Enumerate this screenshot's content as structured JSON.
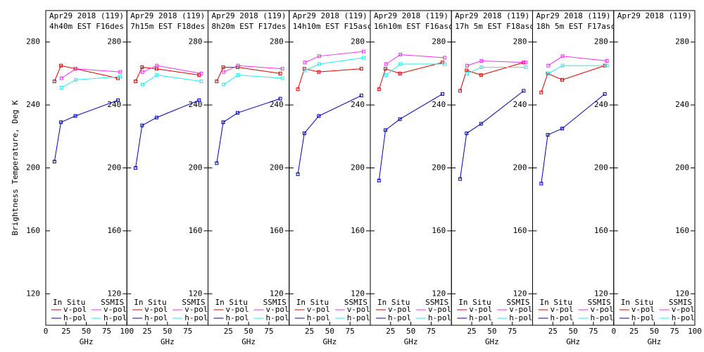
{
  "chart_data": [
    {
      "type": "line",
      "title": "Apr29 2018 (119)",
      "subtitle": "4h40m EST F16des",
      "ylabel": "Brightness Temperature, Deg K",
      "xlabel": "GHz",
      "xlim": [
        0,
        100
      ],
      "ylim": [
        100,
        300
      ],
      "xticks": [
        0,
        25,
        50,
        75,
        100
      ],
      "yticks": [
        120,
        160,
        200,
        240,
        280
      ],
      "yticks_left": true,
      "legend_groups": [
        "In Situ",
        "SSMIS"
      ],
      "series": [
        {
          "name": "v-pol",
          "group": 0,
          "color": "#dd0000",
          "x": [
            10.7,
            18.7,
            36.5,
            89
          ],
          "values": [
            255,
            265,
            263,
            257
          ]
        },
        {
          "name": "h-pol",
          "group": 0,
          "color": "#0000bb",
          "x": [
            10.7,
            18.7,
            36.5,
            89
          ],
          "values": [
            204,
            229,
            233,
            243
          ]
        },
        {
          "name": "v-pol",
          "group": 1,
          "color": "#ee33ee",
          "x": [
            19.35,
            37,
            91.66
          ],
          "values": [
            257,
            263,
            261
          ]
        },
        {
          "name": "h-pol",
          "group": 1,
          "color": "#22eeee",
          "x": [
            19.35,
            37,
            91.66
          ],
          "values": [
            251,
            256,
            258
          ]
        }
      ]
    },
    {
      "type": "line",
      "title": "Apr29 2018 (119)",
      "subtitle": "7h15m EST F18des",
      "xlabel": "GHz",
      "xlim": [
        0,
        100
      ],
      "ylim": [
        100,
        300
      ],
      "xticks": [
        25,
        50,
        75
      ],
      "yticks": [
        120,
        160,
        200,
        240,
        280
      ],
      "legend_groups": [
        "In Situ",
        "SSMIS"
      ],
      "series": [
        {
          "name": "v-pol",
          "group": 0,
          "color": "#dd0000",
          "x": [
            10.7,
            18.7,
            36.5,
            89
          ],
          "values": [
            255,
            264,
            263,
            259
          ]
        },
        {
          "name": "h-pol",
          "group": 0,
          "color": "#0000bb",
          "x": [
            10.7,
            18.7,
            36.5,
            89
          ],
          "values": [
            200,
            227,
            232,
            243
          ]
        },
        {
          "name": "v-pol",
          "group": 1,
          "color": "#ee33ee",
          "x": [
            19.35,
            37,
            91.66
          ],
          "values": [
            261,
            265,
            260
          ]
        },
        {
          "name": "h-pol",
          "group": 1,
          "color": "#22eeee",
          "x": [
            19.35,
            37,
            91.66
          ],
          "values": [
            253,
            259,
            255
          ]
        }
      ]
    },
    {
      "type": "line",
      "title": "Apr29 2018 (119)",
      "subtitle": "8h20m EST F17des",
      "xlabel": "GHz",
      "xlim": [
        0,
        100
      ],
      "ylim": [
        100,
        300
      ],
      "xticks": [
        25,
        50,
        75
      ],
      "yticks": [
        120,
        160,
        200,
        240,
        280
      ],
      "legend_groups": [
        "In Situ",
        "SSMIS"
      ],
      "series": [
        {
          "name": "v-pol",
          "group": 0,
          "color": "#dd0000",
          "x": [
            10.7,
            18.7,
            36.5,
            89
          ],
          "values": [
            255,
            264,
            264,
            260
          ]
        },
        {
          "name": "h-pol",
          "group": 0,
          "color": "#0000bb",
          "x": [
            10.7,
            18.7,
            36.5,
            89
          ],
          "values": [
            203,
            229,
            235,
            244
          ]
        },
        {
          "name": "v-pol",
          "group": 1,
          "color": "#ee33ee",
          "x": [
            19.35,
            37,
            91.66
          ],
          "values": [
            261,
            265,
            263
          ]
        },
        {
          "name": "h-pol",
          "group": 1,
          "color": "#22eeee",
          "x": [
            19.35,
            37,
            91.66
          ],
          "values": [
            253,
            259,
            257
          ]
        }
      ]
    },
    {
      "type": "line",
      "title": "Apr29 2018 (119)",
      "subtitle": "14h10m EST F15asc",
      "xlabel": "GHz",
      "xlim": [
        0,
        100
      ],
      "ylim": [
        100,
        300
      ],
      "xticks": [
        25,
        50,
        75
      ],
      "yticks": [
        120,
        160,
        200,
        240,
        280
      ],
      "legend_groups": [
        "In Situ",
        "SSMIS"
      ],
      "series": [
        {
          "name": "v-pol",
          "group": 0,
          "color": "#dd0000",
          "x": [
            10.7,
            18.7,
            36.5,
            89
          ],
          "values": [
            250,
            263,
            261,
            263
          ]
        },
        {
          "name": "h-pol",
          "group": 0,
          "color": "#0000bb",
          "x": [
            10.7,
            18.7,
            36.5,
            89
          ],
          "values": [
            196,
            222,
            233,
            246
          ]
        },
        {
          "name": "v-pol",
          "group": 1,
          "color": "#ee33ee",
          "x": [
            19.35,
            37,
            91.66
          ],
          "values": [
            267,
            271,
            274
          ]
        },
        {
          "name": "h-pol",
          "group": 1,
          "color": "#22eeee",
          "x": [
            19.35,
            37,
            91.66
          ],
          "values": [
            262,
            266,
            270
          ]
        }
      ]
    },
    {
      "type": "line",
      "title": "Apr29 2018 (119)",
      "subtitle": "16h10m EST F16asc",
      "xlabel": "GHz",
      "xlim": [
        0,
        100
      ],
      "ylim": [
        100,
        300
      ],
      "xticks": [
        25,
        50,
        75
      ],
      "yticks": [
        120,
        160,
        200,
        240,
        280
      ],
      "legend_groups": [
        "In Situ",
        "SSMIS"
      ],
      "series": [
        {
          "name": "v-pol",
          "group": 0,
          "color": "#dd0000",
          "x": [
            10.7,
            18.7,
            36.5,
            89
          ],
          "values": [
            250,
            263,
            260,
            267
          ]
        },
        {
          "name": "h-pol",
          "group": 0,
          "color": "#0000bb",
          "x": [
            10.7,
            18.7,
            36.5,
            89
          ],
          "values": [
            192,
            224,
            231,
            247
          ]
        },
        {
          "name": "v-pol",
          "group": 1,
          "color": "#ee33ee",
          "x": [
            19.35,
            37,
            91.66
          ],
          "values": [
            266,
            272,
            270
          ]
        },
        {
          "name": "h-pol",
          "group": 1,
          "color": "#22eeee",
          "x": [
            19.35,
            37,
            91.66
          ],
          "values": [
            259,
            266,
            266
          ]
        }
      ]
    },
    {
      "type": "line",
      "title": "Apr29 2018 (119)",
      "subtitle": "17h 5m EST F18asc",
      "xlabel": "GHz",
      "xlim": [
        0,
        100
      ],
      "ylim": [
        100,
        300
      ],
      "xticks": [
        25,
        50,
        75
      ],
      "yticks": [
        120,
        160,
        200,
        240,
        280
      ],
      "legend_groups": [
        "In Situ",
        "SSMIS"
      ],
      "series": [
        {
          "name": "v-pol",
          "group": 0,
          "color": "#dd0000",
          "x": [
            10.7,
            18.7,
            36.5,
            89
          ],
          "values": [
            249,
            262,
            259,
            267
          ]
        },
        {
          "name": "h-pol",
          "group": 0,
          "color": "#0000bb",
          "x": [
            10.7,
            18.7,
            36.5,
            89
          ],
          "values": [
            193,
            222,
            228,
            249
          ]
        },
        {
          "name": "v-pol",
          "group": 1,
          "color": "#ee33ee",
          "x": [
            19.35,
            37,
            91.66
          ],
          "values": [
            265,
            268,
            267
          ]
        },
        {
          "name": "h-pol",
          "group": 1,
          "color": "#22eeee",
          "x": [
            19.35,
            37,
            91.66
          ],
          "values": [
            260,
            264,
            264
          ]
        }
      ]
    },
    {
      "type": "line",
      "title": "Apr29 2018 (119)",
      "subtitle": "18h 5m EST F17asc",
      "xlabel": "GHz",
      "xlim": [
        0,
        100
      ],
      "ylim": [
        100,
        300
      ],
      "xticks": [
        25,
        50,
        75
      ],
      "yticks": [
        120,
        160,
        200,
        240,
        280
      ],
      "legend_groups": [
        "In Situ",
        "SSMIS"
      ],
      "series": [
        {
          "name": "v-pol",
          "group": 0,
          "color": "#dd0000",
          "x": [
            10.7,
            18.7,
            36.5,
            89
          ],
          "values": [
            248,
            260,
            256,
            265
          ]
        },
        {
          "name": "h-pol",
          "group": 0,
          "color": "#0000bb",
          "x": [
            10.7,
            18.7,
            36.5,
            89
          ],
          "values": [
            190,
            221,
            225,
            247
          ]
        },
        {
          "name": "v-pol",
          "group": 1,
          "color": "#ee33ee",
          "x": [
            19.35,
            37,
            91.66
          ],
          "values": [
            265,
            271,
            268
          ]
        },
        {
          "name": "h-pol",
          "group": 1,
          "color": "#22eeee",
          "x": [
            19.35,
            37,
            91.66
          ],
          "values": [
            260,
            265,
            265
          ]
        }
      ]
    },
    {
      "type": "line",
      "title": "Apr29 2018 (119)",
      "xlabel": "GHz",
      "xlim": [
        0,
        100
      ],
      "ylim": [
        100,
        300
      ],
      "xticks": [
        0,
        25,
        50,
        75,
        100
      ],
      "yticks": [
        120,
        160,
        200,
        240,
        280
      ],
      "legend_groups": [
        "In Situ",
        "SSMIS"
      ],
      "series": [
        {
          "name": "v-pol",
          "group": 0,
          "color": "#dd0000",
          "x": [],
          "values": []
        },
        {
          "name": "h-pol",
          "group": 0,
          "color": "#0000bb",
          "x": [],
          "values": []
        },
        {
          "name": "v-pol",
          "group": 1,
          "color": "#ee33ee",
          "x": [],
          "values": []
        },
        {
          "name": "h-pol",
          "group": 1,
          "color": "#22eeee",
          "x": [],
          "values": []
        }
      ]
    }
  ]
}
